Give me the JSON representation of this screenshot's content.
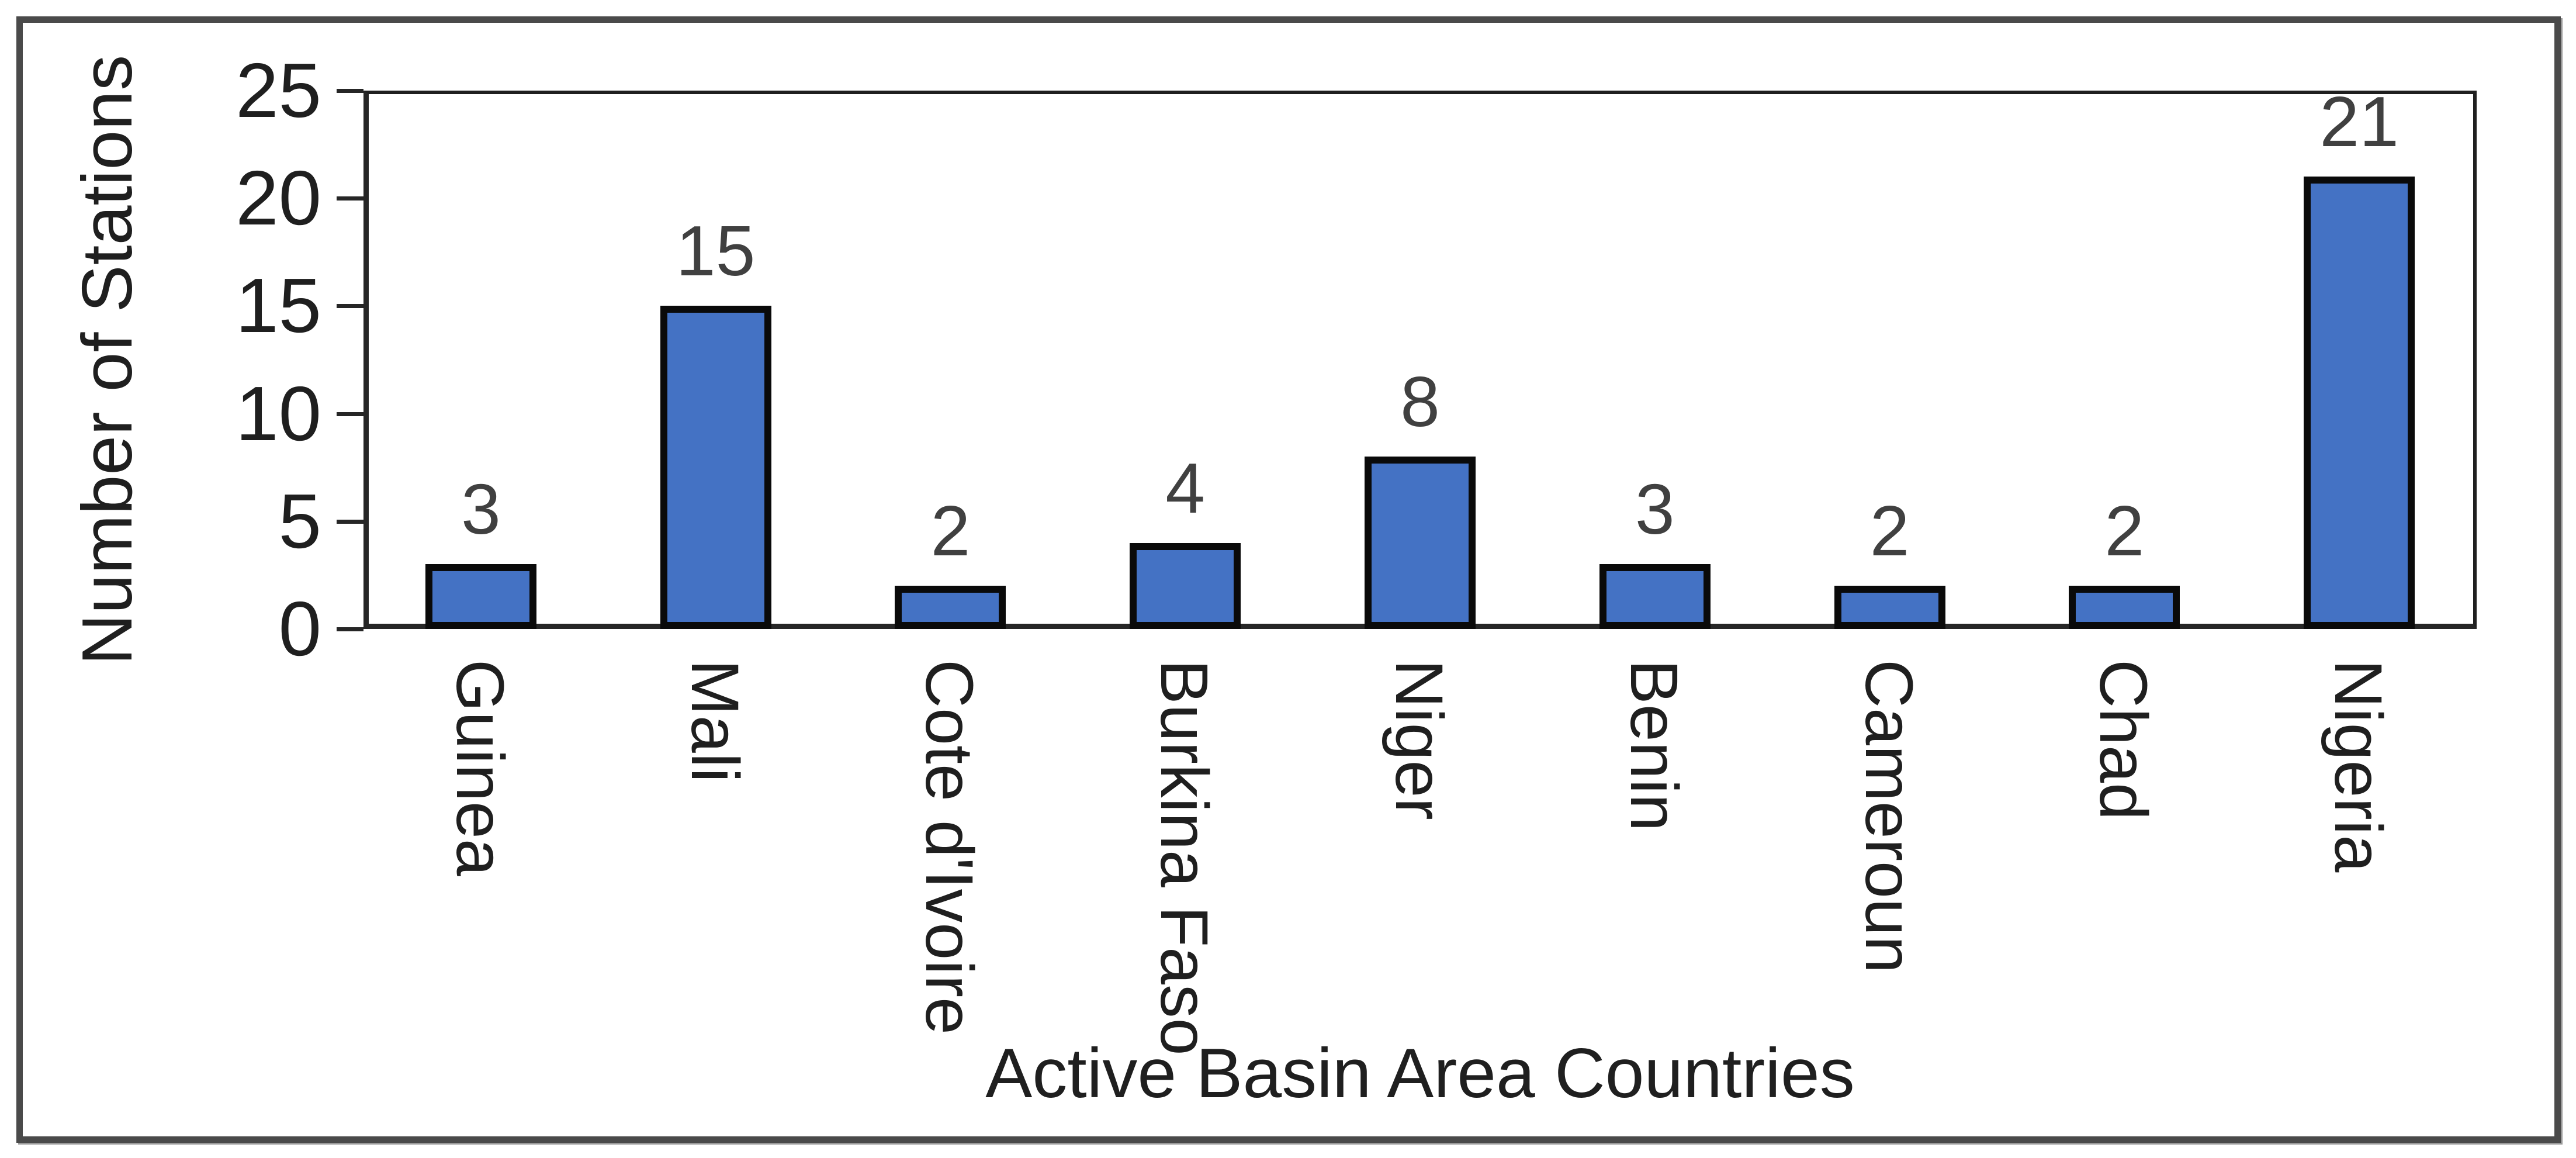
{
  "chart_data": {
    "type": "bar",
    "title": "",
    "xlabel": "Active Basin Area Countries",
    "ylabel": "Number of Stations",
    "categories": [
      "Guinea",
      "Mali",
      "Cote d'Ivoire",
      "Burkina Faso",
      "Niger",
      "Benin",
      "Cameroun",
      "Chad",
      "Nigeria"
    ],
    "values": [
      3,
      15,
      2,
      4,
      8,
      3,
      2,
      2,
      21
    ],
    "ylim": [
      0,
      25
    ],
    "yticks": [
      0,
      5,
      10,
      15,
      20,
      25
    ],
    "grid": "off",
    "legend": "none",
    "data_labels": "above-bars",
    "category_label_rotation_deg": 90,
    "colors": {
      "bar_fill": "#4472C4",
      "bar_border": "#0a0a0a",
      "axis_line": "#262626",
      "tick_text": "#1f1f1f",
      "data_label_text": "#404040",
      "frame_border": "#4a4a4a",
      "background": "#ffffff"
    }
  }
}
